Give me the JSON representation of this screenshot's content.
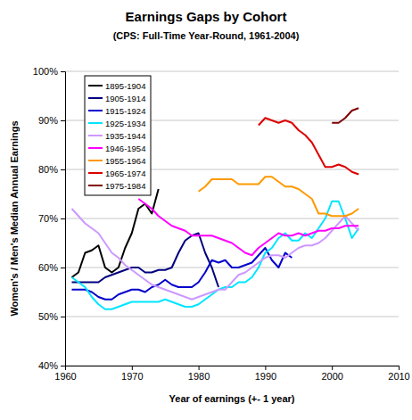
{
  "chart_data": {
    "type": "line",
    "title": "Earnings Gaps by Cohort",
    "subtitle": "(CPS: Full-Time Year-Round, 1961-2004)",
    "x_label": "Year of earnings (+- 1 year)",
    "y_label": "Women's / Men's Median Annual Earnings",
    "x": [
      1961,
      1962,
      1963,
      1964,
      1965,
      1966,
      1967,
      1968,
      1969,
      1970,
      1971,
      1972,
      1973,
      1974,
      1975,
      1976,
      1977,
      1978,
      1979,
      1980,
      1981,
      1982,
      1983,
      1984,
      1985,
      1986,
      1987,
      1988,
      1989,
      1990,
      1991,
      1992,
      1993,
      1994,
      1995,
      1996,
      1997,
      1998,
      1999,
      2000,
      2001,
      2002,
      2003,
      2004
    ],
    "series": [
      {
        "name": "1895-1904",
        "color": "#000000",
        "values": [
          58,
          59,
          63,
          63.5,
          64.5,
          60,
          59,
          60,
          64,
          67,
          72,
          73,
          71,
          76,
          null,
          null,
          null,
          null,
          null,
          null,
          null,
          null,
          null,
          null,
          null,
          null,
          null,
          null,
          null,
          null,
          null,
          null,
          null,
          null,
          null,
          null,
          null,
          null,
          null,
          null,
          null,
          null,
          null,
          null
        ]
      },
      {
        "name": "1905-1914",
        "color": "#000080",
        "values": [
          57,
          57,
          57,
          57,
          57,
          58,
          58.5,
          59,
          59.5,
          60,
          60,
          59,
          59,
          59.5,
          59.5,
          60,
          63,
          65.5,
          66.5,
          67,
          63,
          60,
          56,
          null,
          null,
          null,
          null,
          null,
          null,
          null,
          null,
          null,
          null,
          null,
          null,
          null,
          null,
          null,
          null,
          null,
          null,
          null,
          null,
          null
        ]
      },
      {
        "name": "1915-1924",
        "color": "#0000cc",
        "values": [
          55.5,
          55.5,
          55.5,
          55,
          54,
          53.5,
          53.5,
          54.5,
          55,
          55.5,
          55.5,
          55,
          56,
          56.5,
          57.5,
          56.5,
          56,
          56,
          56,
          57,
          59,
          61.5,
          61,
          61.5,
          60,
          60,
          60.5,
          61,
          62.5,
          64,
          61.5,
          60,
          63,
          62,
          null,
          null,
          null,
          null,
          null,
          null,
          null,
          null,
          null,
          null
        ]
      },
      {
        "name": "1925-1934",
        "color": "#00e5ff",
        "values": [
          58,
          57,
          56,
          54,
          52.5,
          51.5,
          51.5,
          52,
          52.5,
          53,
          53,
          53,
          53,
          53,
          53.5,
          53,
          52.5,
          52,
          52,
          52.5,
          53.5,
          54.5,
          55.5,
          56,
          56,
          57,
          57,
          58,
          60,
          63,
          64,
          66,
          67,
          65.5,
          65.5,
          67,
          66,
          68,
          70,
          73.5,
          73.5,
          70,
          66,
          68
        ]
      },
      {
        "name": "1935-1944",
        "color": "#cc99ff",
        "values": [
          72,
          70.5,
          69,
          68,
          67,
          65,
          63,
          62,
          60.5,
          59.5,
          58.5,
          57.5,
          56.5,
          56,
          55.5,
          55,
          54.5,
          54,
          53.5,
          54,
          54.5,
          55,
          55.5,
          55.5,
          57,
          58.5,
          59,
          60,
          61,
          62,
          62.5,
          62.5,
          62,
          63,
          64,
          64.5,
          64.5,
          65,
          66,
          67.5,
          69,
          70.5,
          69,
          67.5
        ]
      },
      {
        "name": "1946-1954",
        "color": "#ff00ff",
        "values": [
          null,
          null,
          null,
          null,
          null,
          null,
          null,
          null,
          null,
          null,
          74,
          73,
          72,
          70.5,
          69.5,
          68.5,
          68,
          67.5,
          66.5,
          66.5,
          66.5,
          66.5,
          66,
          65.5,
          65,
          64,
          63,
          62.5,
          64,
          65,
          66,
          67,
          66.5,
          66.5,
          67,
          66.5,
          67,
          67.5,
          67.5,
          68,
          68,
          68.5,
          68.5,
          68.5
        ]
      },
      {
        "name": "1955-1964",
        "color": "#ff9900",
        "values": [
          null,
          null,
          null,
          null,
          null,
          null,
          null,
          null,
          null,
          null,
          null,
          null,
          null,
          null,
          null,
          null,
          null,
          null,
          null,
          75.5,
          76.5,
          78,
          78,
          78,
          78,
          77,
          77,
          77,
          77,
          78.5,
          78.5,
          77.5,
          76.5,
          76.5,
          76,
          75,
          74,
          71,
          71,
          70.5,
          70.5,
          70.5,
          71,
          72
        ]
      },
      {
        "name": "1965-1974",
        "color": "#dd0000",
        "values": [
          null,
          null,
          null,
          null,
          null,
          null,
          null,
          null,
          null,
          null,
          null,
          null,
          null,
          null,
          null,
          null,
          null,
          null,
          null,
          null,
          null,
          null,
          null,
          null,
          null,
          null,
          null,
          null,
          89,
          90.5,
          90,
          89.5,
          90,
          89.5,
          88,
          87,
          85.5,
          83,
          80.5,
          80.5,
          81,
          80.5,
          79.5,
          79
        ]
      },
      {
        "name": "1975-1984",
        "color": "#800000",
        "values": [
          null,
          null,
          null,
          null,
          null,
          null,
          null,
          null,
          null,
          null,
          null,
          null,
          null,
          null,
          null,
          null,
          null,
          null,
          null,
          null,
          null,
          null,
          null,
          null,
          null,
          null,
          null,
          null,
          null,
          null,
          null,
          null,
          null,
          null,
          null,
          null,
          null,
          null,
          null,
          89.5,
          89.5,
          90.5,
          92,
          92.5
        ]
      }
    ],
    "xlim": [
      1960,
      2010
    ],
    "xticks": [
      1960,
      1970,
      1980,
      1990,
      2000,
      2010
    ],
    "ylim": [
      40,
      100
    ],
    "yticks": [
      {
        "value": 40,
        "label": "40%"
      },
      {
        "value": 50,
        "label": "50%"
      },
      {
        "value": 60,
        "label": "60%"
      },
      {
        "value": 70,
        "label": "70%"
      },
      {
        "value": 80,
        "label": "80%"
      },
      {
        "value": 90,
        "label": "90%"
      },
      {
        "value": 100,
        "label": "100%"
      }
    ],
    "grid": true,
    "legend": "upper left"
  }
}
